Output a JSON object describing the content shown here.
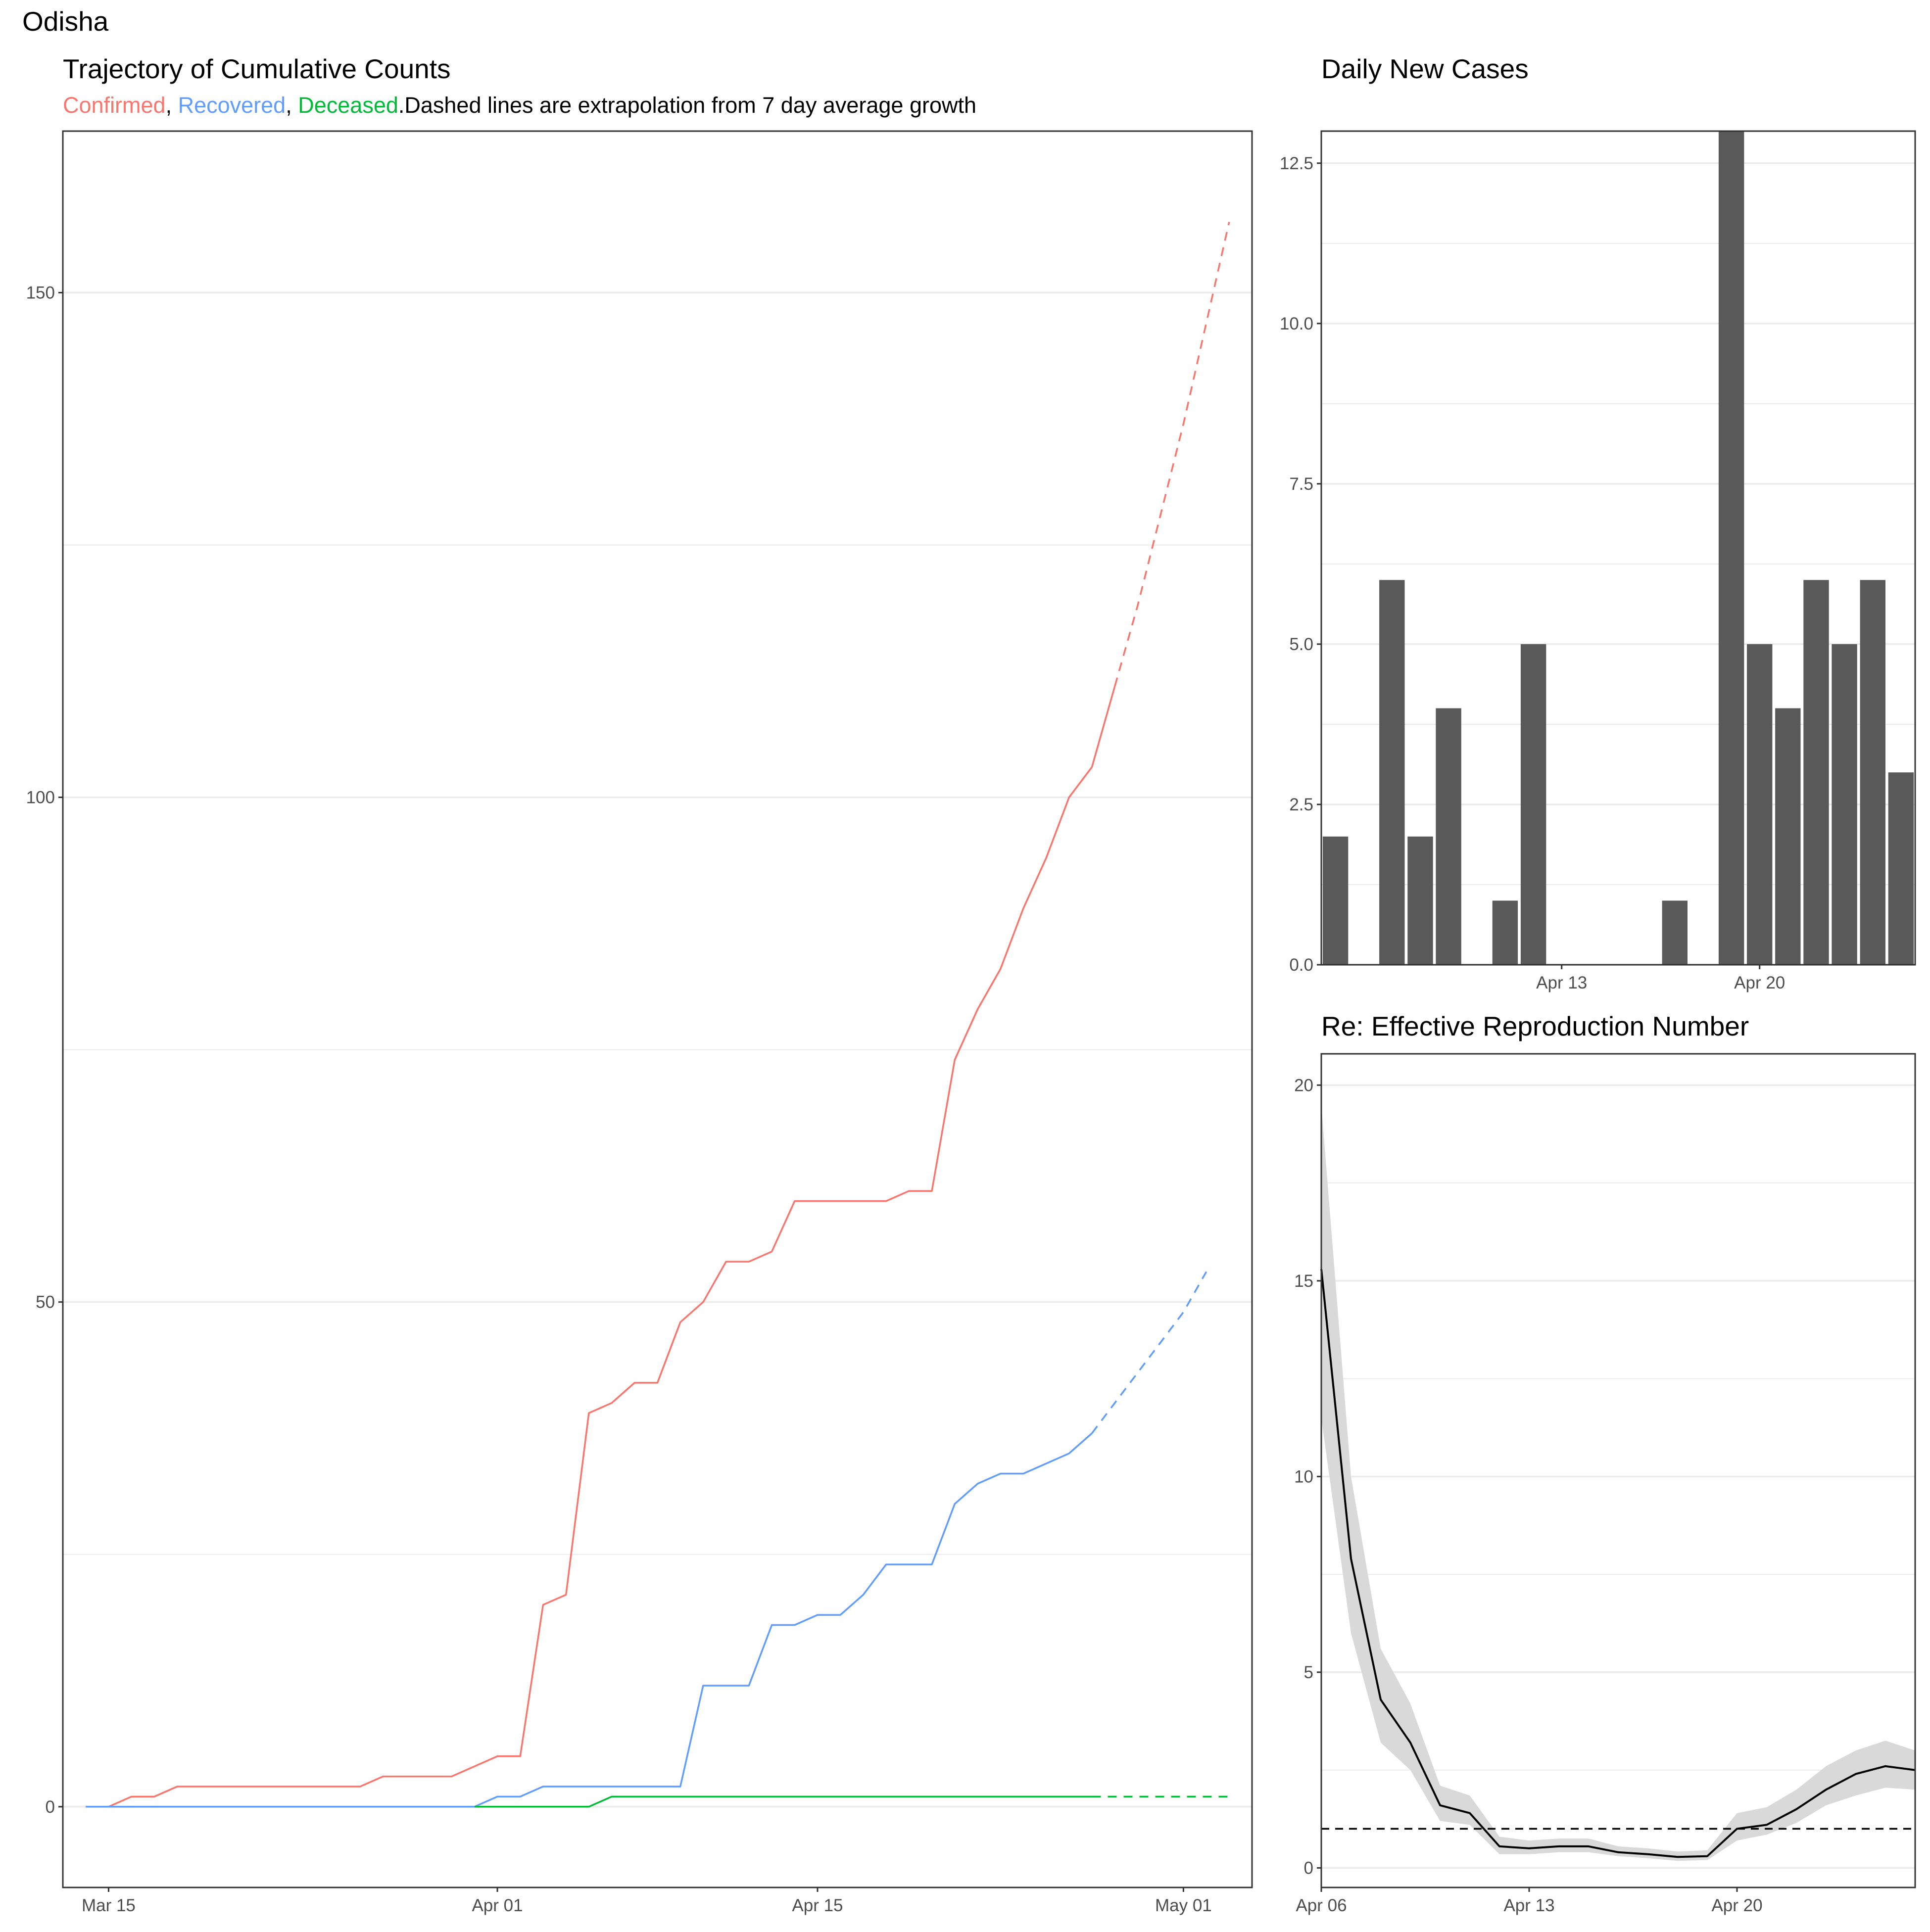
{
  "page": {
    "title": "Odisha"
  },
  "colors": {
    "confirmed": "#F8766D",
    "recovered": "#619CFF",
    "deceased": "#00BA38",
    "bars": "#595959",
    "band": "#d9d9d9",
    "line": "#000000",
    "grid": "#ebebeb",
    "panel_border": "#333333"
  },
  "trajectory": {
    "title": "Trajectory of Cumulative Counts",
    "subtitle": {
      "confirmed": "Confirmed",
      "sep1": ", ",
      "recovered": "Recovered",
      "sep2": ", ",
      "deceased": "Deceased",
      "rest": ".Dashed lines are extrapolation from 7 day average growth"
    }
  },
  "daily": {
    "title": "Daily New Cases"
  },
  "re": {
    "title": "Re: Effective Reproduction Number"
  },
  "chart_data": [
    {
      "id": "trajectory",
      "type": "line",
      "title": "Trajectory of Cumulative Counts",
      "x_type": "date",
      "xlim": [
        "2020-03-13",
        "2020-05-04"
      ],
      "ylim": [
        -8,
        166
      ],
      "x_ticks": [
        {
          "x": "2020-03-15",
          "label": "Mar 15"
        },
        {
          "x": "2020-04-01",
          "label": "Apr 01"
        },
        {
          "x": "2020-04-15",
          "label": "Apr 15"
        },
        {
          "x": "2020-05-01",
          "label": "May 01"
        }
      ],
      "y_ticks": [
        0,
        50,
        100,
        150
      ],
      "grid": true,
      "series": [
        {
          "name": "Confirmed",
          "color_key": "confirmed",
          "dash": false,
          "points": [
            [
              "2020-03-14",
              0
            ],
            [
              "2020-03-15",
              0
            ],
            [
              "2020-03-16",
              1
            ],
            [
              "2020-03-17",
              1
            ],
            [
              "2020-03-18",
              2
            ],
            [
              "2020-03-19",
              2
            ],
            [
              "2020-03-20",
              2
            ],
            [
              "2020-03-21",
              2
            ],
            [
              "2020-03-22",
              2
            ],
            [
              "2020-03-23",
              2
            ],
            [
              "2020-03-24",
              2
            ],
            [
              "2020-03-25",
              2
            ],
            [
              "2020-03-26",
              2
            ],
            [
              "2020-03-27",
              3
            ],
            [
              "2020-03-28",
              3
            ],
            [
              "2020-03-29",
              3
            ],
            [
              "2020-03-30",
              3
            ],
            [
              "2020-03-31",
              4
            ],
            [
              "2020-04-01",
              5
            ],
            [
              "2020-04-02",
              5
            ],
            [
              "2020-04-03",
              20
            ],
            [
              "2020-04-04",
              21
            ],
            [
              "2020-04-05",
              39
            ],
            [
              "2020-04-06",
              40
            ],
            [
              "2020-04-07",
              42
            ],
            [
              "2020-04-08",
              42
            ],
            [
              "2020-04-09",
              48
            ],
            [
              "2020-04-10",
              50
            ],
            [
              "2020-04-11",
              54
            ],
            [
              "2020-04-12",
              54
            ],
            [
              "2020-04-13",
              55
            ],
            [
              "2020-04-14",
              60
            ],
            [
              "2020-04-15",
              60
            ],
            [
              "2020-04-16",
              60
            ],
            [
              "2020-04-17",
              60
            ],
            [
              "2020-04-18",
              60
            ],
            [
              "2020-04-19",
              61
            ],
            [
              "2020-04-20",
              61
            ],
            [
              "2020-04-21",
              74
            ],
            [
              "2020-04-22",
              79
            ],
            [
              "2020-04-23",
              83
            ],
            [
              "2020-04-24",
              89
            ],
            [
              "2020-04-25",
              94
            ],
            [
              "2020-04-26",
              100
            ],
            [
              "2020-04-27",
              103
            ],
            [
              "2020-04-28",
              111
            ]
          ]
        },
        {
          "name": "Confirmed",
          "color_key": "confirmed",
          "dash": true,
          "points": [
            [
              "2020-04-28",
              111
            ],
            [
              "2020-04-29",
              119
            ],
            [
              "2020-04-30",
              128
            ],
            [
              "2020-05-01",
              137
            ],
            [
              "2020-05-02",
              147
            ],
            [
              "2020-05-03",
              157
            ]
          ]
        },
        {
          "name": "Recovered",
          "color_key": "recovered",
          "dash": false,
          "points": [
            [
              "2020-03-14",
              0
            ],
            [
              "2020-03-31",
              0
            ],
            [
              "2020-04-01",
              1
            ],
            [
              "2020-04-02",
              1
            ],
            [
              "2020-04-03",
              2
            ],
            [
              "2020-04-09",
              2
            ],
            [
              "2020-04-10",
              12
            ],
            [
              "2020-04-12",
              12
            ],
            [
              "2020-04-13",
              18
            ],
            [
              "2020-04-14",
              18
            ],
            [
              "2020-04-15",
              19
            ],
            [
              "2020-04-16",
              19
            ],
            [
              "2020-04-17",
              21
            ],
            [
              "2020-04-18",
              24
            ],
            [
              "2020-04-20",
              24
            ],
            [
              "2020-04-21",
              30
            ],
            [
              "2020-04-22",
              32
            ],
            [
              "2020-04-23",
              33
            ],
            [
              "2020-04-24",
              33
            ],
            [
              "2020-04-25",
              34
            ],
            [
              "2020-04-26",
              35
            ],
            [
              "2020-04-27",
              37
            ]
          ]
        },
        {
          "name": "Recovered",
          "color_key": "recovered",
          "dash": true,
          "points": [
            [
              "2020-04-27",
              37
            ],
            [
              "2020-04-28",
              40
            ],
            [
              "2020-04-29",
              43
            ],
            [
              "2020-04-30",
              46
            ],
            [
              "2020-05-01",
              49
            ],
            [
              "2020-05-02",
              53
            ]
          ]
        },
        {
          "name": "Deceased",
          "color_key": "deceased",
          "dash": false,
          "points": [
            [
              "2020-03-31",
              0
            ],
            [
              "2020-04-05",
              0
            ],
            [
              "2020-04-06",
              1
            ],
            [
              "2020-04-27",
              1
            ]
          ]
        },
        {
          "name": "Deceased",
          "color_key": "deceased",
          "dash": true,
          "points": [
            [
              "2020-04-27",
              1
            ],
            [
              "2020-05-03",
              1
            ]
          ]
        }
      ]
    },
    {
      "id": "daily",
      "type": "bar",
      "title": "Daily New Cases",
      "x_type": "date",
      "xlim": [
        "2020-04-05",
        "2020-04-25"
      ],
      "ylim": [
        0,
        13
      ],
      "x_ticks": [
        {
          "x": "2020-04-13",
          "label": "Apr 13"
        },
        {
          "x": "2020-04-20",
          "label": "Apr 20"
        }
      ],
      "y_ticks": [
        0.0,
        2.5,
        5.0,
        7.5,
        10.0,
        12.5
      ],
      "grid": true,
      "categories": [
        "2020-04-05",
        "2020-04-06",
        "2020-04-07",
        "2020-04-08",
        "2020-04-09",
        "2020-04-10",
        "2020-04-11",
        "2020-04-12",
        "2020-04-13",
        "2020-04-14",
        "2020-04-15",
        "2020-04-16",
        "2020-04-17",
        "2020-04-18",
        "2020-04-19",
        "2020-04-20",
        "2020-04-21",
        "2020-04-22",
        "2020-04-23",
        "2020-04-24",
        "2020-04-25"
      ],
      "values": [
        2,
        0,
        6,
        2,
        4,
        0,
        1,
        5,
        0,
        0,
        0,
        0,
        1,
        0,
        13,
        5,
        4,
        6,
        5,
        6,
        3
      ]
    },
    {
      "id": "re",
      "type": "line",
      "title": "Re: Effective Reproduction Number",
      "x_type": "date",
      "xlim": [
        "2020-04-06",
        "2020-04-26"
      ],
      "ylim": [
        -0.5,
        20.8
      ],
      "x_ticks": [
        {
          "x": "2020-04-06",
          "label": "Apr 06"
        },
        {
          "x": "2020-04-13",
          "label": "Apr 13"
        },
        {
          "x": "2020-04-20",
          "label": "Apr 20"
        }
      ],
      "y_ticks": [
        0,
        5,
        10,
        15,
        20
      ],
      "grid": true,
      "reference_line": 1,
      "x": [
        "2020-04-06",
        "2020-04-07",
        "2020-04-08",
        "2020-04-09",
        "2020-04-10",
        "2020-04-11",
        "2020-04-12",
        "2020-04-13",
        "2020-04-14",
        "2020-04-15",
        "2020-04-16",
        "2020-04-17",
        "2020-04-18",
        "2020-04-19",
        "2020-04-20",
        "2020-04-21",
        "2020-04-22",
        "2020-04-23",
        "2020-04-24",
        "2020-04-25",
        "2020-04-26"
      ],
      "series": [
        {
          "name": "Re",
          "values": [
            15.3,
            7.9,
            4.3,
            3.2,
            1.6,
            1.4,
            0.55,
            0.5,
            0.55,
            0.55,
            0.4,
            0.35,
            0.28,
            0.3,
            1.0,
            1.1,
            1.5,
            2.0,
            2.4,
            2.6,
            2.5
          ]
        },
        {
          "name": "Re lower",
          "values": [
            11.5,
            6.0,
            3.2,
            2.5,
            1.2,
            1.1,
            0.35,
            0.35,
            0.4,
            0.4,
            0.3,
            0.25,
            0.18,
            0.2,
            0.7,
            0.85,
            1.15,
            1.6,
            1.85,
            2.05,
            2.0
          ]
        },
        {
          "name": "Re upper",
          "values": [
            19.5,
            10.0,
            5.6,
            4.2,
            2.1,
            1.85,
            0.8,
            0.7,
            0.75,
            0.75,
            0.55,
            0.5,
            0.42,
            0.45,
            1.4,
            1.55,
            2.0,
            2.6,
            3.0,
            3.25,
            3.0
          ]
        }
      ]
    }
  ]
}
